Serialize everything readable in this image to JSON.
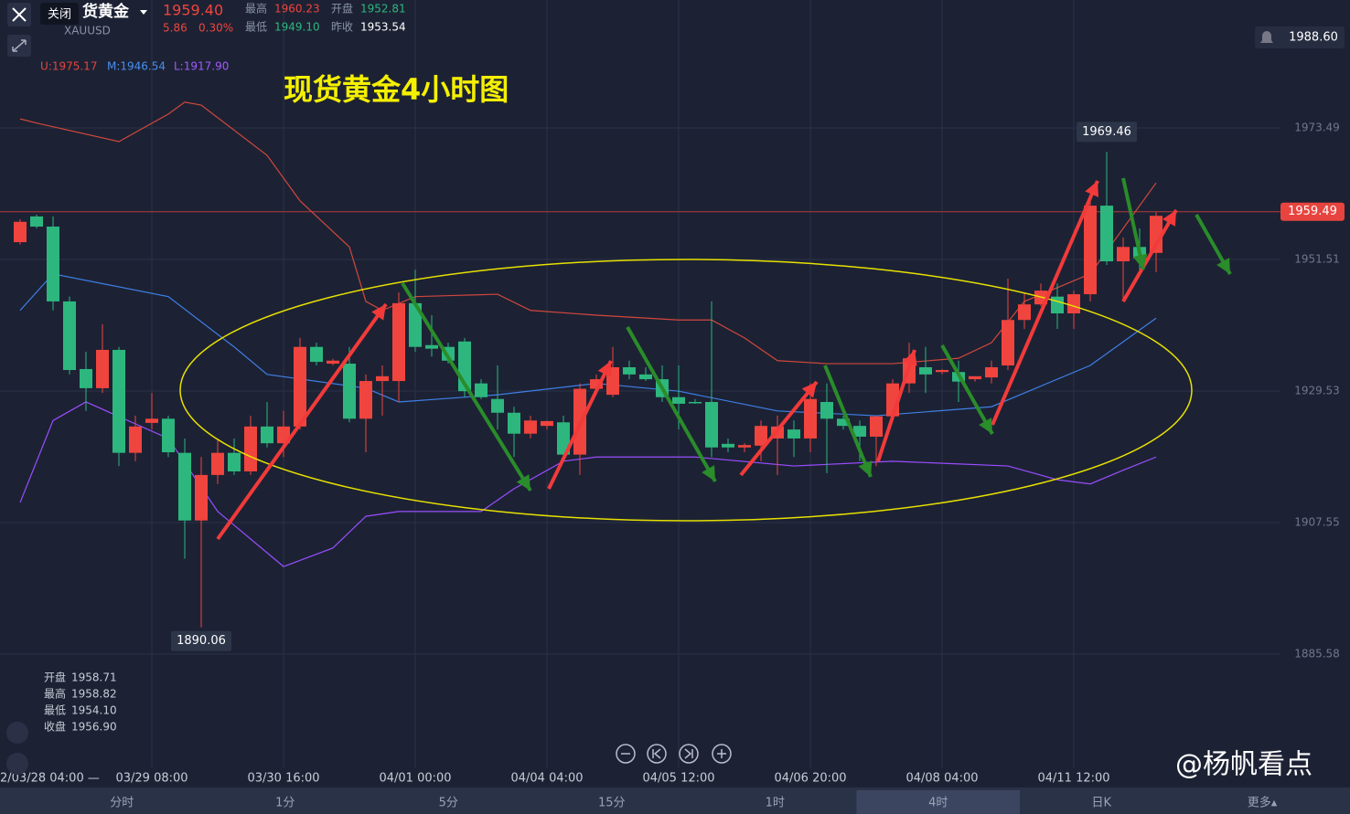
{
  "header": {
    "name": "货黄金",
    "symbol": "XAUUSD",
    "close_tooltip": "关闭",
    "price": "1959.40",
    "change": "5.86",
    "change_pct": "0.30%",
    "stats": [
      {
        "label": "最高",
        "value": "1960.23"
      },
      {
        "label": "开盘",
        "value": "1952.81"
      },
      {
        "label": "最低",
        "value": "1949.10"
      },
      {
        "label": "昨收",
        "value": "1953.54"
      }
    ],
    "alert_price": "1988.60"
  },
  "chart": {
    "type": "candlestick",
    "title": "现货黄金4小时图",
    "indicators": [
      {
        "text": "U:1975.17",
        "color": "#e2463f"
      },
      {
        "text": "M:1946.54",
        "color": "#4a8ef0"
      },
      {
        "text": "L:1917.90",
        "color": "#a259ff"
      }
    ],
    "up_color": "#f0443e",
    "down_color": "#2db77e",
    "open": [
      1954.4,
      1958.7,
      1957.0,
      1944.5,
      1933.2,
      1930.0,
      1936.4,
      1919.2,
      1924.2,
      1924.9,
      1919.2,
      1907.9,
      1915.5,
      1919.2,
      1916.1,
      1923.6,
      1920.8,
      1923.6,
      1936.9,
      1934.1,
      1934.1,
      1924.9,
      1931.2,
      1931.2,
      1944.2,
      1937.2,
      1936.9,
      1937.8,
      1930.8,
      1928.2,
      1925.9,
      1922.4,
      1923.7,
      1924.3,
      1918.9,
      1929.9,
      1928.9,
      1933.5,
      1932.3,
      1931.5,
      1928.5,
      1927.7,
      1927.7,
      1920.7,
      1920.1,
      1920.4,
      1921.6,
      1923.1,
      1921.6,
      1927.7,
      1924.9,
      1923.7,
      1921.9,
      1925.3,
      1930.8,
      1933.5,
      1932.7,
      1932.7,
      1931.5,
      1931.8,
      1933.8,
      1941.4,
      1944.0,
      1945.3,
      1942.5,
      1945.7,
      1960.5,
      1951.2,
      1953.6,
      1952.6
    ],
    "high": [
      1958.2,
      1959.0,
      1958.7,
      1945.3,
      1936.1,
      1940.7,
      1936.9,
      1925.4,
      1929.2,
      1925.4,
      1921.6,
      1918.5,
      1921.6,
      1921.6,
      1925.4,
      1927.7,
      1926.2,
      1938.4,
      1937.6,
      1934.9,
      1936.9,
      1932.3,
      1933.8,
      1946.0,
      1949.8,
      1942.2,
      1937.6,
      1938.4,
      1931.5,
      1933.8,
      1926.9,
      1925.4,
      1924.6,
      1925.4,
      1930.8,
      1932.3,
      1936.9,
      1934.6,
      1933.5,
      1933.8,
      1933.8,
      1928.2,
      1944.5,
      1921.6,
      1920.8,
      1924.6,
      1925.4,
      1924.6,
      1930.8,
      1930.8,
      1925.4,
      1924.6,
      1925.4,
      1931.5,
      1937.6,
      1936.9,
      1933.2,
      1934.6,
      1932.0,
      1934.6,
      1948.3,
      1946.0,
      1947.5,
      1947.5,
      1946.3,
      1962.04,
      1969.46,
      1955.2,
      1956.7,
      1959.4
    ],
    "low": [
      1954.0,
      1956.7,
      1943.0,
      1932.3,
      1926.2,
      1929.2,
      1917.0,
      1917.8,
      1923.1,
      1918.5,
      1901.5,
      1890.06,
      1914.0,
      1915.5,
      1915.5,
      1920.1,
      1918.5,
      1923.1,
      1933.8,
      1933.8,
      1924.3,
      1919.3,
      1925.4,
      1927.7,
      1936.1,
      1935.3,
      1934.1,
      1928.5,
      1928.2,
      1923.1,
      1918.5,
      1921.6,
      1923.1,
      1917.8,
      1915.5,
      1928.9,
      1928.5,
      1931.5,
      1931.2,
      1927.7,
      1923.1,
      1927.4,
      1918.5,
      1919.3,
      1919.3,
      1917.8,
      1915.5,
      1918.5,
      1919.3,
      1915.8,
      1923.1,
      1917.8,
      1917.0,
      1924.6,
      1929.2,
      1929.2,
      1932.3,
      1927.7,
      1931.1,
      1930.8,
      1933.04,
      1939.9,
      1943.7,
      1939.9,
      1939.9,
      1944.5,
      1950.6,
      1944.5,
      1949.8,
      1949.4
    ],
    "close": [
      1957.8,
      1957.0,
      1944.5,
      1933.04,
      1930.0,
      1936.4,
      1919.2,
      1923.6,
      1924.9,
      1919.3,
      1907.9,
      1915.5,
      1919.2,
      1916.1,
      1923.6,
      1920.8,
      1923.6,
      1936.9,
      1934.4,
      1934.6,
      1924.9,
      1931.2,
      1932.0,
      1944.2,
      1936.9,
      1936.6,
      1934.6,
      1929.5,
      1928.5,
      1925.9,
      1922.4,
      1924.6,
      1924.5,
      1918.9,
      1929.9,
      1931.5,
      1933.5,
      1932.3,
      1931.5,
      1928.5,
      1927.4,
      1927.6,
      1920.1,
      1920.1,
      1920.5,
      1923.7,
      1923.6,
      1921.6,
      1928.2,
      1924.9,
      1923.7,
      1921.9,
      1925.3,
      1930.8,
      1935.0,
      1932.3,
      1933.04,
      1931.1,
      1932.0,
      1933.5,
      1941.4,
      1944.0,
      1946.3,
      1942.5,
      1945.7,
      1960.5,
      1951.2,
      1953.6,
      1951.7,
      1958.8
    ],
    "bands": [
      {
        "color": "#d2473d",
        "x": [
          0,
          1,
          6,
          9,
          10,
          11,
          15,
          17,
          20,
          21,
          22,
          24,
          29,
          31,
          35,
          40,
          42,
          44,
          46,
          49,
          53,
          57,
          59,
          61,
          65,
          67,
          69
        ],
        "values": [
          1975.0,
          1974.3,
          1971.2,
          1975.8,
          1977.8,
          1977.3,
          1968.9,
          1961.3,
          1953.6,
          1944.5,
          1943.0,
          1945.3,
          1945.7,
          1943.0,
          1942.2,
          1941.4,
          1941.4,
          1938.4,
          1934.6,
          1934.1,
          1934.1,
          1935.0,
          1937.6,
          1944.5,
          1949.1,
          1956.7,
          1964.3
        ]
      },
      {
        "color": "#3f7fe6",
        "x": [
          0,
          2,
          9,
          13,
          15,
          21,
          23,
          29,
          35,
          40,
          46,
          52,
          59,
          65,
          69
        ],
        "values": [
          1943.0,
          1949.1,
          1945.3,
          1936.9,
          1932.3,
          1930.0,
          1927.7,
          1928.9,
          1930.8,
          1929.5,
          1926.2,
          1925.4,
          1926.9,
          1933.8,
          1941.7
        ]
      },
      {
        "color": "#9a4dff",
        "x": [
          0,
          2,
          4,
          9,
          12,
          16,
          19,
          21,
          23,
          28,
          30,
          33,
          35,
          41,
          47,
          53,
          60,
          63,
          65,
          67,
          69
        ],
        "values": [
          1910.9,
          1924.6,
          1927.7,
          1921.6,
          1909.4,
          1900.2,
          1903.3,
          1908.6,
          1909.4,
          1909.4,
          1913.2,
          1917.8,
          1918.5,
          1918.5,
          1917.0,
          1917.8,
          1917.0,
          1914.7,
          1914.0,
          1916.3,
          1918.5
        ]
      }
    ],
    "ylim": [
      1866.64,
      1994.86
    ],
    "yticks": [
      1973.49,
      1951.51,
      1929.53,
      1907.55,
      1885.58
    ],
    "current_price": 1959.49,
    "time_labels": [
      {
        "index": -6,
        "label": "2/03/28 04:00 —"
      },
      {
        "index": 8,
        "label": "03/29 08:00"
      },
      {
        "index": 16,
        "label": "03/30 16:00"
      },
      {
        "index": 24,
        "label": "04/01 00:00"
      },
      {
        "index": 32,
        "label": "04/04 04:00"
      },
      {
        "index": 40,
        "label": "04/05 12:00"
      },
      {
        "index": 48,
        "label": "04/06 20:00"
      },
      {
        "index": 56,
        "label": "04/08 04:00"
      },
      {
        "index": 64,
        "label": "04/11 12:00"
      }
    ],
    "ohlc_panel": [
      {
        "label": "开盘",
        "value": "1958.71"
      },
      {
        "label": "最高",
        "value": "1958.82"
      },
      {
        "label": "最低",
        "value": "1954.10"
      },
      {
        "label": "收盘",
        "value": "1956.90"
      }
    ]
  },
  "tabs": [
    "分时",
    "1分",
    "5分",
    "15分",
    "1时",
    "4时",
    "日K",
    "更多▴"
  ],
  "active_tab": 5,
  "watermark": "@杨帆看点"
}
